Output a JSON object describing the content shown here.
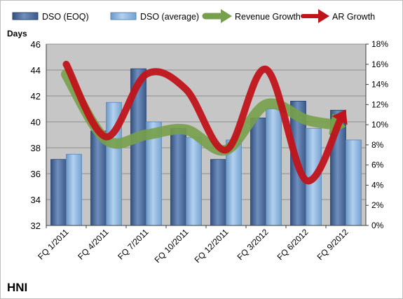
{
  "chart_data": {
    "type": "bar",
    "title": "HNI",
    "ylabel": "Days",
    "y2label": "",
    "categories": [
      "FQ 1/2011",
      "FQ 4/2011",
      "FQ 7/2011",
      "FQ 10/2011",
      "FQ 12/2011",
      "FQ 3/2012",
      "FQ 6/2012",
      "FQ 9/2012"
    ],
    "ylim": [
      32,
      46
    ],
    "yticks": [
      "32",
      "34",
      "36",
      "38",
      "40",
      "42",
      "44",
      "46"
    ],
    "y2lim": [
      0,
      18
    ],
    "y2ticks": [
      "0%",
      "2%",
      "4%",
      "6%",
      "8%",
      "10%",
      "12%",
      "14%",
      "16%",
      "18%"
    ],
    "grid": true,
    "legend_position": "top",
    "series": [
      {
        "name": "DSO (EOQ)",
        "type": "bar",
        "axis": "left",
        "color": "#4a6b9b",
        "values": [
          37.1,
          39.3,
          44.1,
          39.5,
          37.1,
          40.3,
          41.6,
          40.9
        ]
      },
      {
        "name": "DSO (average)",
        "type": "bar",
        "axis": "left",
        "color": "#8bb4df",
        "values": [
          37.5,
          41.5,
          40.0,
          38.8,
          38.6,
          41.0,
          39.5,
          38.6
        ]
      },
      {
        "name": "Revenue Growth",
        "type": "line",
        "axis": "right",
        "unit": "%",
        "color": "#77a04a",
        "values": [
          15.0,
          8.5,
          9.0,
          9.5,
          7.5,
          12.0,
          10.5,
          9.8
        ]
      },
      {
        "name": "AR Growth",
        "type": "line",
        "axis": "right",
        "unit": "%",
        "color": "#c0141b",
        "values": [
          16.0,
          8.8,
          15.0,
          13.5,
          7.5,
          15.5,
          4.5,
          11.5
        ]
      }
    ]
  },
  "colors": {
    "plot_background": "#c6c6c6",
    "gridline": "#8f8f8f",
    "frame": "#bfbfbf"
  }
}
